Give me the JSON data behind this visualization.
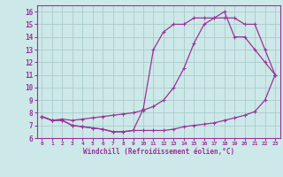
{
  "bg_color": "#cde8e8",
  "line_color": "#993399",
  "grid_color": "#aacccc",
  "xlabel": "Windchill (Refroidissement éolien,°C)",
  "ylabel_ticks": [
    6,
    7,
    8,
    9,
    10,
    11,
    12,
    13,
    14,
    15,
    16
  ],
  "xlabel_ticks": [
    0,
    1,
    2,
    3,
    4,
    5,
    6,
    7,
    8,
    9,
    10,
    11,
    12,
    13,
    14,
    15,
    16,
    17,
    18,
    19,
    20,
    21,
    22,
    23
  ],
  "xlim": [
    -0.5,
    23.5
  ],
  "ylim": [
    6,
    16.5
  ],
  "line1_x": [
    0,
    1,
    2,
    3,
    4,
    5,
    6,
    7,
    8,
    9,
    10,
    11,
    12,
    13,
    14,
    15,
    16,
    17,
    18,
    19,
    20,
    21,
    22,
    23
  ],
  "line1_y": [
    7.7,
    7.4,
    7.5,
    7.4,
    7.5,
    7.6,
    7.7,
    7.8,
    7.9,
    8.0,
    8.2,
    8.5,
    9.0,
    10.0,
    11.5,
    13.5,
    15.0,
    15.5,
    15.5,
    15.5,
    15.0,
    15.0,
    13.0,
    11.0
  ],
  "line2_x": [
    0,
    1,
    2,
    3,
    4,
    5,
    6,
    7,
    8,
    9,
    10,
    11,
    12,
    13,
    14,
    15,
    16,
    17,
    18,
    19,
    20,
    21,
    22,
    23
  ],
  "line2_y": [
    7.7,
    7.4,
    7.4,
    7.0,
    6.9,
    6.8,
    6.7,
    6.5,
    6.5,
    6.6,
    8.3,
    13.0,
    14.4,
    15.0,
    15.0,
    15.5,
    15.5,
    15.5,
    16.0,
    14.0,
    14.0,
    13.0,
    12.0,
    11.0
  ],
  "line3_x": [
    0,
    1,
    2,
    3,
    4,
    5,
    6,
    7,
    8,
    9,
    10,
    11,
    12,
    13,
    14,
    15,
    16,
    17,
    18,
    19,
    20,
    21,
    22,
    23
  ],
  "line3_y": [
    7.7,
    7.4,
    7.4,
    7.0,
    6.9,
    6.8,
    6.7,
    6.5,
    6.5,
    6.6,
    6.6,
    6.6,
    6.6,
    6.7,
    6.9,
    7.0,
    7.1,
    7.2,
    7.4,
    7.6,
    7.8,
    8.1,
    9.0,
    11.0
  ]
}
